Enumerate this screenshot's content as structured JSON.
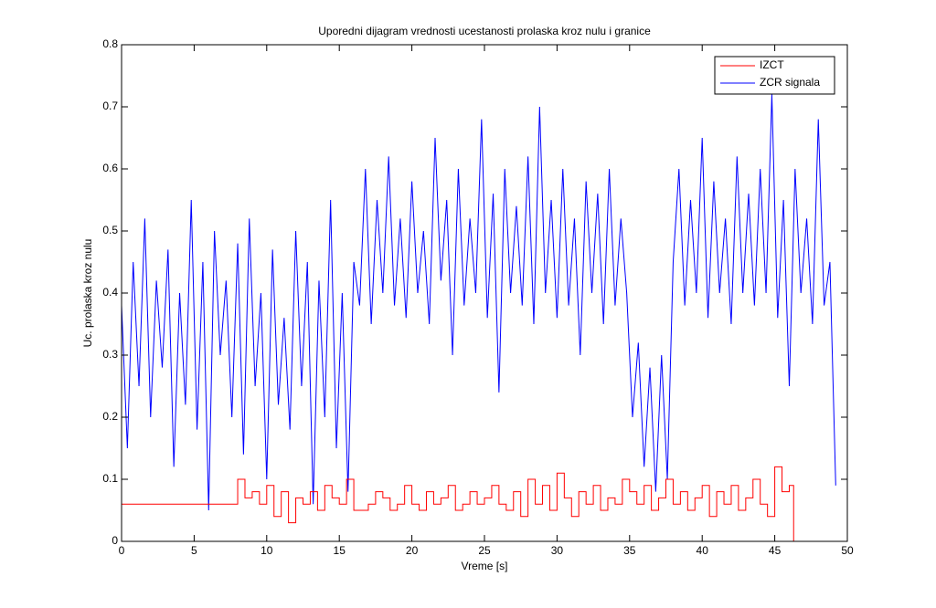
{
  "chart_data": {
    "type": "line",
    "step": true,
    "title": "Uporedni dijagram vrednosti ucestanosti prolaska kroz nulu i granice",
    "xlabel": "Vreme [s]",
    "ylabel": "Uc. prolaska kroz nulu",
    "xlim": [
      0,
      50
    ],
    "ylim": [
      0,
      0.8
    ],
    "xticks": [
      0,
      5,
      10,
      15,
      20,
      25,
      30,
      35,
      40,
      45,
      50
    ],
    "yticks": [
      0,
      0.1,
      0.2,
      0.3,
      0.4,
      0.5,
      0.6,
      0.7,
      0.8
    ],
    "grid": false,
    "legend": "upper right",
    "series": [
      {
        "name": "IZCT",
        "color": "#ff0000",
        "step": true,
        "x": [
          0,
          8,
          8.5,
          9,
          9.5,
          10,
          10.5,
          11,
          11.5,
          12,
          12.5,
          13,
          13.5,
          14,
          14.5,
          15,
          15.5,
          16,
          16.5,
          17,
          17.5,
          18,
          18.5,
          19,
          19.5,
          20,
          20.5,
          21,
          21.5,
          22,
          22.5,
          23,
          23.5,
          24,
          24.5,
          25,
          25.5,
          26,
          26.5,
          27,
          27.5,
          28,
          28.5,
          29,
          29.5,
          30,
          30.5,
          31,
          31.5,
          32,
          32.5,
          33,
          33.5,
          34,
          34.5,
          35,
          35.5,
          36,
          36.5,
          37,
          37.5,
          38,
          38.5,
          39,
          39.5,
          40,
          40.5,
          41,
          41.5,
          42,
          42.5,
          43,
          43.5,
          44,
          44.5,
          45,
          45.5,
          46,
          46.3
        ],
        "values": [
          0.06,
          0.1,
          0.07,
          0.08,
          0.06,
          0.09,
          0.04,
          0.08,
          0.03,
          0.07,
          0.06,
          0.08,
          0.05,
          0.09,
          0.07,
          0.06,
          0.1,
          0.05,
          0.05,
          0.06,
          0.08,
          0.07,
          0.05,
          0.06,
          0.09,
          0.06,
          0.05,
          0.08,
          0.06,
          0.07,
          0.09,
          0.05,
          0.06,
          0.08,
          0.06,
          0.07,
          0.09,
          0.06,
          0.05,
          0.08,
          0.04,
          0.1,
          0.06,
          0.09,
          0.05,
          0.11,
          0.07,
          0.04,
          0.08,
          0.06,
          0.09,
          0.05,
          0.07,
          0.06,
          0.1,
          0.08,
          0.06,
          0.09,
          0.05,
          0.07,
          0.1,
          0.06,
          0.08,
          0.05,
          0.07,
          0.09,
          0.04,
          0.08,
          0.06,
          0.09,
          0.05,
          0.07,
          0.1,
          0.06,
          0.04,
          0.12,
          0.08,
          0.09,
          0
        ]
      },
      {
        "name": "ZCR signala",
        "color": "#0000ff",
        "step": false,
        "x": [
          0,
          0.4,
          0.8,
          1.2,
          1.6,
          2,
          2.4,
          2.8,
          3.2,
          3.6,
          4,
          4.4,
          4.8,
          5.2,
          5.6,
          6,
          6.4,
          6.8,
          7.2,
          7.6,
          8,
          8.4,
          8.8,
          9.2,
          9.6,
          10,
          10.4,
          10.8,
          11.2,
          11.6,
          12,
          12.4,
          12.8,
          13.2,
          13.6,
          14,
          14.4,
          14.8,
          15.2,
          15.6,
          16,
          16.4,
          16.8,
          17.2,
          17.6,
          18,
          18.4,
          18.8,
          19.2,
          19.6,
          20,
          20.4,
          20.8,
          21.2,
          21.6,
          22,
          22.4,
          22.8,
          23.2,
          23.6,
          24,
          24.4,
          24.8,
          25.2,
          25.6,
          26,
          26.4,
          26.8,
          27.2,
          27.6,
          28,
          28.4,
          28.8,
          29.2,
          29.6,
          30,
          30.4,
          30.8,
          31.2,
          31.6,
          32,
          32.4,
          32.8,
          33.2,
          33.6,
          34,
          34.4,
          34.8,
          35.2,
          35.6,
          36,
          36.4,
          36.8,
          37.2,
          37.6,
          38,
          38.4,
          38.8,
          39.2,
          39.6,
          40,
          40.4,
          40.8,
          41.2,
          41.6,
          42,
          42.4,
          42.8,
          43.2,
          43.6,
          44,
          44.4,
          44.8,
          45.2,
          45.6,
          46,
          46.4,
          46.8,
          47.2,
          47.6,
          48,
          48.4,
          48.8,
          49.2
        ],
        "values": [
          0.38,
          0.15,
          0.45,
          0.25,
          0.52,
          0.2,
          0.42,
          0.28,
          0.47,
          0.12,
          0.4,
          0.22,
          0.55,
          0.18,
          0.45,
          0.05,
          0.5,
          0.3,
          0.42,
          0.2,
          0.48,
          0.14,
          0.52,
          0.25,
          0.4,
          0.1,
          0.47,
          0.22,
          0.36,
          0.18,
          0.5,
          0.25,
          0.45,
          0.06,
          0.42,
          0.2,
          0.55,
          0.15,
          0.4,
          0.08,
          0.45,
          0.38,
          0.6,
          0.35,
          0.55,
          0.4,
          0.62,
          0.38,
          0.52,
          0.36,
          0.58,
          0.4,
          0.5,
          0.35,
          0.65,
          0.42,
          0.55,
          0.3,
          0.6,
          0.38,
          0.52,
          0.4,
          0.68,
          0.36,
          0.56,
          0.24,
          0.6,
          0.4,
          0.54,
          0.38,
          0.62,
          0.35,
          0.7,
          0.4,
          0.55,
          0.36,
          0.6,
          0.38,
          0.52,
          0.3,
          0.58,
          0.4,
          0.56,
          0.35,
          0.6,
          0.38,
          0.52,
          0.4,
          0.2,
          0.32,
          0.12,
          0.28,
          0.08,
          0.3,
          0.1,
          0.45,
          0.6,
          0.38,
          0.55,
          0.4,
          0.65,
          0.36,
          0.58,
          0.4,
          0.52,
          0.35,
          0.62,
          0.4,
          0.56,
          0.38,
          0.6,
          0.4,
          0.72,
          0.36,
          0.55,
          0.25,
          0.6,
          0.4,
          0.52,
          0.35,
          0.68,
          0.38,
          0.45,
          0.09
        ]
      }
    ]
  }
}
